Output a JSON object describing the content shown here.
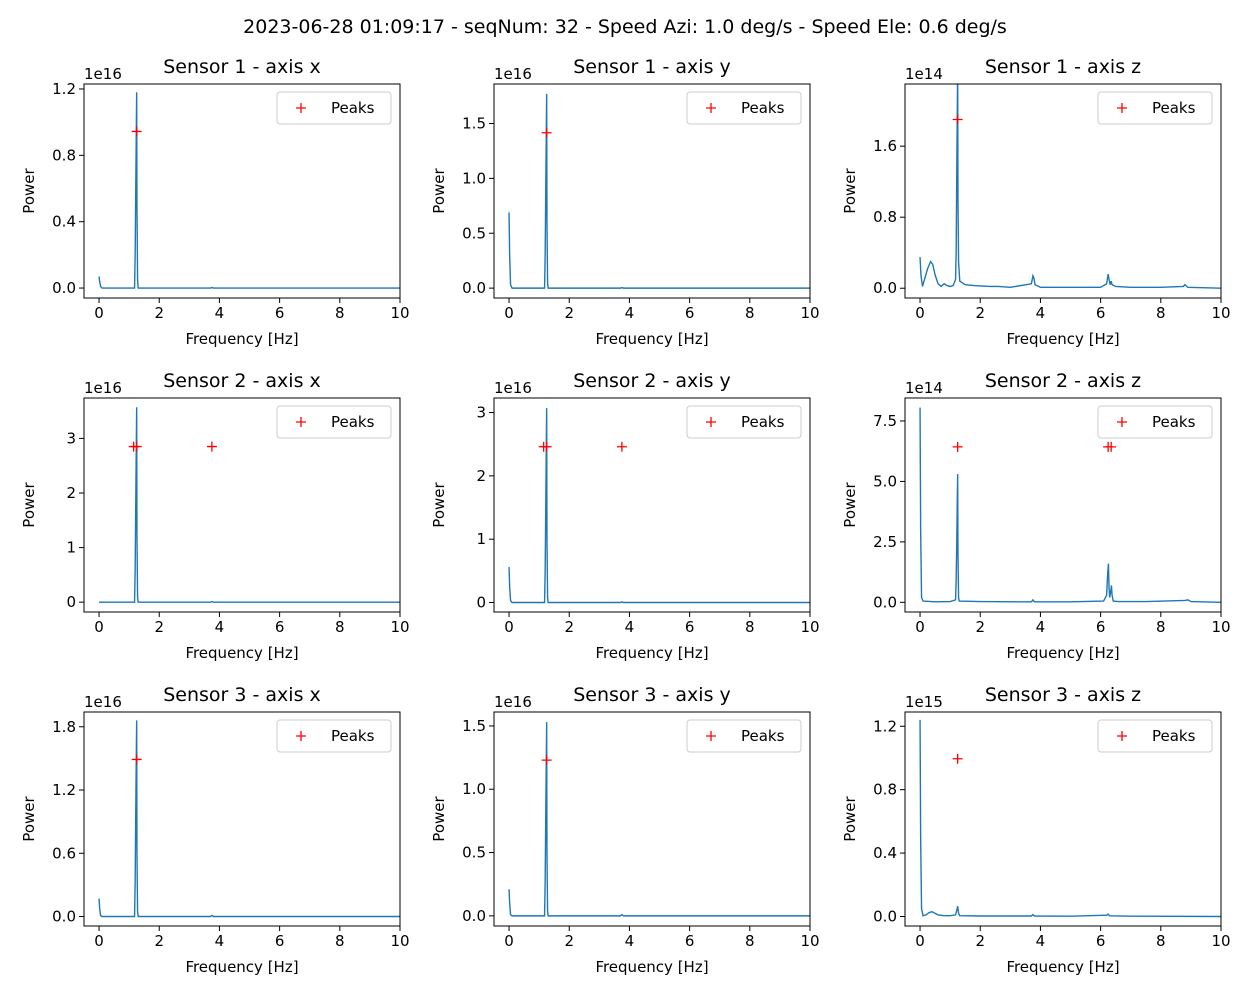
{
  "figure_title": "2023-06-28 01:09:17 - seqNum: 32 - Speed Azi: 1.0 deg/s - Speed Ele: 0.6 deg/s",
  "colors": {
    "line": "#1f77b4",
    "peaks": "#ff0000",
    "axes": "#000000"
  },
  "chart_data": [
    {
      "type": "line",
      "title": "Sensor 1 - axis x",
      "xlabel": "Frequency [Hz]",
      "ylabel": "Power",
      "xlim": [
        -0.5,
        10
      ],
      "ylim": [
        -0.06,
        1.23
      ],
      "exponent_label": "1e16",
      "xticks": [
        "0",
        "2",
        "4",
        "6",
        "8",
        "10"
      ],
      "xtick_values": [
        0,
        2,
        4,
        6,
        8,
        10
      ],
      "yticks": [
        "0.0",
        "0.4",
        "0.8",
        "1.2"
      ],
      "ytick_values": [
        0,
        0.4,
        0.8,
        1.2
      ],
      "series": [
        {
          "name": "",
          "x": [
            0,
            0.02,
            0.05,
            0.1,
            1.0,
            1.18,
            1.2,
            1.22,
            1.24,
            1.25,
            1.26,
            1.28,
            1.3,
            3.7,
            3.75,
            3.8,
            10
          ],
          "y": [
            0.07,
            0.04,
            0.01,
            0.0,
            0.0,
            0.0,
            0.2,
            0.6,
            1.0,
            1.18,
            0.5,
            0.05,
            0.0,
            0.0,
            0.003,
            0.0,
            0.0
          ]
        },
        {
          "name": "Peaks",
          "x": [
            1.25
          ],
          "y": [
            0.944
          ]
        }
      ],
      "legend": "upper right"
    },
    {
      "type": "line",
      "title": "Sensor 1 - axis y",
      "xlabel": "Frequency [Hz]",
      "ylabel": "Power",
      "xlim": [
        -0.5,
        10
      ],
      "ylim": [
        -0.09,
        1.86
      ],
      "exponent_label": "1e16",
      "xticks": [
        "0",
        "2",
        "4",
        "6",
        "8",
        "10"
      ],
      "xtick_values": [
        0,
        2,
        4,
        6,
        8,
        10
      ],
      "yticks": [
        "0.0",
        "0.5",
        "1.0",
        "1.5"
      ],
      "ytick_values": [
        0,
        0.5,
        1.0,
        1.5
      ],
      "series": [
        {
          "name": "",
          "x": [
            0,
            0.02,
            0.05,
            0.1,
            1.0,
            1.18,
            1.2,
            1.22,
            1.24,
            1.25,
            1.26,
            1.28,
            1.3,
            3.7,
            3.75,
            3.8,
            10
          ],
          "y": [
            0.69,
            0.3,
            0.03,
            0.0,
            0.0,
            0.0,
            0.3,
            0.9,
            1.5,
            1.77,
            0.6,
            0.05,
            0.0,
            0.0,
            0.005,
            0.0,
            0.0
          ]
        },
        {
          "name": "Peaks",
          "x": [
            1.25
          ],
          "y": [
            1.416
          ]
        }
      ],
      "legend": "upper right"
    },
    {
      "type": "line",
      "title": "Sensor 1 - axis z",
      "xlabel": "Frequency [Hz]",
      "ylabel": "Power",
      "xlim": [
        -0.5,
        10
      ],
      "ylim": [
        -0.11,
        2.3
      ],
      "exponent_label": "1e14",
      "xticks": [
        "0",
        "2",
        "4",
        "6",
        "8",
        "10"
      ],
      "xtick_values": [
        0,
        2,
        4,
        6,
        8,
        10
      ],
      "yticks": [
        "0.0",
        "0.8",
        "1.6"
      ],
      "ytick_values": [
        0,
        0.8,
        1.6
      ],
      "series": [
        {
          "name": "",
          "x": [
            0,
            0.03,
            0.08,
            0.15,
            0.25,
            0.35,
            0.42,
            0.5,
            0.6,
            0.7,
            0.8,
            0.9,
            1.0,
            1.1,
            1.18,
            1.2,
            1.22,
            1.24,
            1.25,
            1.26,
            1.28,
            1.32,
            1.5,
            1.8,
            2.3,
            2.6,
            3.0,
            3.7,
            3.75,
            3.78,
            3.82,
            4.0,
            5.0,
            6.0,
            6.2,
            6.25,
            6.28,
            6.32,
            6.35,
            6.38,
            6.5,
            7.0,
            8.0,
            8.75,
            8.8,
            8.9,
            10
          ],
          "y": [
            0.35,
            0.15,
            0.02,
            0.1,
            0.22,
            0.3,
            0.27,
            0.15,
            0.05,
            0.02,
            0.05,
            0.03,
            0.02,
            0.03,
            0.1,
            0.4,
            1.3,
            2.1,
            2.5,
            1.0,
            0.3,
            0.08,
            0.04,
            0.03,
            0.02,
            0.02,
            0.01,
            0.05,
            0.14,
            0.12,
            0.04,
            0.01,
            0.01,
            0.01,
            0.05,
            0.16,
            0.1,
            0.04,
            0.08,
            0.04,
            0.02,
            0.01,
            0.01,
            0.02,
            0.04,
            0.01,
            0.0
          ]
        },
        {
          "name": "Peaks",
          "x": [
            1.25
          ],
          "y": [
            1.9
          ]
        }
      ],
      "legend": "upper right"
    },
    {
      "type": "line",
      "title": "Sensor 2 - axis x",
      "xlabel": "Frequency [Hz]",
      "ylabel": "Power",
      "xlim": [
        -0.5,
        10
      ],
      "ylim": [
        -0.18,
        3.74
      ],
      "exponent_label": "1e16",
      "xticks": [
        "0",
        "2",
        "4",
        "6",
        "8",
        "10"
      ],
      "xtick_values": [
        0,
        2,
        4,
        6,
        8,
        10
      ],
      "yticks": [
        "0",
        "1",
        "2",
        "3"
      ],
      "ytick_values": [
        0,
        1,
        2,
        3
      ],
      "series": [
        {
          "name": "",
          "x": [
            0,
            0.05,
            1.0,
            1.18,
            1.2,
            1.22,
            1.24,
            1.25,
            1.26,
            1.28,
            1.3,
            3.7,
            3.75,
            3.8,
            10
          ],
          "y": [
            0.0,
            0.0,
            0.0,
            0.0,
            0.6,
            1.8,
            3.0,
            3.57,
            1.2,
            0.1,
            0.0,
            0.0,
            0.01,
            0.0,
            0.0
          ]
        },
        {
          "name": "Peaks",
          "x": [
            1.15,
            1.25,
            3.75
          ],
          "y": [
            2.85,
            2.85,
            2.85
          ]
        }
      ],
      "legend": "upper right"
    },
    {
      "type": "line",
      "title": "Sensor 2 - axis y",
      "xlabel": "Frequency [Hz]",
      "ylabel": "Power",
      "xlim": [
        -0.5,
        10
      ],
      "ylim": [
        -0.15,
        3.23
      ],
      "exponent_label": "1e16",
      "xticks": [
        "0",
        "2",
        "4",
        "6",
        "8",
        "10"
      ],
      "xtick_values": [
        0,
        2,
        4,
        6,
        8,
        10
      ],
      "yticks": [
        "0",
        "1",
        "2",
        "3"
      ],
      "ytick_values": [
        0,
        1,
        2,
        3
      ],
      "series": [
        {
          "name": "",
          "x": [
            0,
            0.02,
            0.05,
            0.1,
            1.0,
            1.18,
            1.2,
            1.22,
            1.24,
            1.25,
            1.26,
            1.28,
            1.3,
            3.7,
            3.75,
            3.8,
            10
          ],
          "y": [
            0.56,
            0.25,
            0.03,
            0.0,
            0.0,
            0.0,
            0.5,
            1.5,
            2.6,
            3.07,
            1.0,
            0.08,
            0.0,
            0.0,
            0.01,
            0.0,
            0.0
          ]
        },
        {
          "name": "Peaks",
          "x": [
            1.15,
            1.25,
            3.75
          ],
          "y": [
            2.46,
            2.46,
            2.46
          ]
        }
      ],
      "legend": "upper right"
    },
    {
      "type": "line",
      "title": "Sensor 2 - axis z",
      "xlabel": "Frequency [Hz]",
      "ylabel": "Power",
      "xlim": [
        -0.5,
        10
      ],
      "ylim": [
        -0.4,
        8.45
      ],
      "exponent_label": "1e14",
      "xticks": [
        "0",
        "2",
        "4",
        "6",
        "8",
        "10"
      ],
      "xtick_values": [
        0,
        2,
        4,
        6,
        8,
        10
      ],
      "yticks": [
        "0.0",
        "2.5",
        "5.0",
        "7.5"
      ],
      "ytick_values": [
        0,
        2.5,
        5.0,
        7.5
      ],
      "series": [
        {
          "name": "",
          "x": [
            0,
            0.02,
            0.05,
            0.1,
            0.5,
            1.0,
            1.18,
            1.2,
            1.22,
            1.24,
            1.25,
            1.26,
            1.28,
            1.3,
            2.0,
            3.7,
            3.75,
            3.8,
            5.0,
            6.1,
            6.2,
            6.23,
            6.26,
            6.28,
            6.3,
            6.33,
            6.36,
            6.38,
            6.42,
            6.6,
            7.5,
            8.8,
            8.9,
            9.0,
            10
          ],
          "y": [
            8.05,
            3.0,
            0.2,
            0.05,
            0.02,
            0.03,
            0.1,
            0.9,
            2.5,
            4.5,
            5.3,
            2.0,
            0.2,
            0.05,
            0.03,
            0.02,
            0.1,
            0.02,
            0.02,
            0.05,
            0.3,
            1.1,
            1.6,
            0.6,
            0.2,
            0.4,
            0.7,
            0.3,
            0.05,
            0.03,
            0.03,
            0.08,
            0.1,
            0.03,
            0.0
          ]
        },
        {
          "name": "Peaks",
          "x": [
            1.25,
            6.25,
            6.35
          ],
          "y": [
            6.43,
            6.43,
            6.43
          ]
        }
      ],
      "legend": "upper right"
    },
    {
      "type": "line",
      "title": "Sensor 3 - axis x",
      "xlabel": "Frequency [Hz]",
      "ylabel": "Power",
      "xlim": [
        -0.5,
        10
      ],
      "ylim": [
        -0.09,
        1.94
      ],
      "exponent_label": "1e16",
      "xticks": [
        "0",
        "2",
        "4",
        "6",
        "8",
        "10"
      ],
      "xtick_values": [
        0,
        2,
        4,
        6,
        8,
        10
      ],
      "yticks": [
        "0.0",
        "0.6",
        "1.2",
        "1.8"
      ],
      "ytick_values": [
        0,
        0.6,
        1.2,
        1.8
      ],
      "series": [
        {
          "name": "",
          "x": [
            0,
            0.02,
            0.05,
            0.1,
            1.0,
            1.18,
            1.2,
            1.22,
            1.24,
            1.25,
            1.26,
            1.28,
            1.3,
            3.7,
            3.75,
            3.8,
            10
          ],
          "y": [
            0.17,
            0.08,
            0.01,
            0.0,
            0.0,
            0.0,
            0.33,
            1.0,
            1.6,
            1.86,
            0.6,
            0.05,
            0.0,
            0.0,
            0.01,
            0.0,
            0.0
          ]
        },
        {
          "name": "Peaks",
          "x": [
            1.25
          ],
          "y": [
            1.49
          ]
        }
      ],
      "legend": "upper right"
    },
    {
      "type": "line",
      "title": "Sensor 3 - axis y",
      "xlabel": "Frequency [Hz]",
      "ylabel": "Power",
      "xlim": [
        -0.5,
        10
      ],
      "ylim": [
        -0.08,
        1.61
      ],
      "exponent_label": "1e16",
      "xticks": [
        "0",
        "2",
        "4",
        "6",
        "8",
        "10"
      ],
      "xtick_values": [
        0,
        2,
        4,
        6,
        8,
        10
      ],
      "yticks": [
        "0.0",
        "0.5",
        "1.0",
        "1.5"
      ],
      "ytick_values": [
        0,
        0.5,
        1.0,
        1.5
      ],
      "series": [
        {
          "name": "",
          "x": [
            0,
            0.02,
            0.05,
            0.1,
            1.0,
            1.18,
            1.2,
            1.22,
            1.24,
            1.25,
            1.26,
            1.28,
            1.3,
            3.7,
            3.75,
            3.8,
            10
          ],
          "y": [
            0.21,
            0.1,
            0.01,
            0.0,
            0.0,
            0.0,
            0.27,
            0.8,
            1.3,
            1.53,
            0.5,
            0.04,
            0.0,
            0.0,
            0.01,
            0.0,
            0.0
          ]
        },
        {
          "name": "Peaks",
          "x": [
            1.25
          ],
          "y": [
            1.23
          ]
        }
      ],
      "legend": "upper right"
    },
    {
      "type": "line",
      "title": "Sensor 3 - axis z",
      "xlabel": "Frequency [Hz]",
      "ylabel": "Power",
      "xlim": [
        -0.5,
        10
      ],
      "ylim": [
        -0.06,
        1.29
      ],
      "exponent_label": "1e15",
      "xticks": [
        "0",
        "2",
        "4",
        "6",
        "8",
        "10"
      ],
      "xtick_values": [
        0,
        2,
        4,
        6,
        8,
        10
      ],
      "yticks": [
        "0.0",
        "0.4",
        "0.8",
        "1.2"
      ],
      "ytick_values": [
        0,
        0.4,
        0.8,
        1.2
      ],
      "series": [
        {
          "name": "",
          "x": [
            0,
            0.02,
            0.05,
            0.1,
            0.2,
            0.3,
            0.4,
            0.5,
            0.6,
            0.8,
            1.0,
            1.18,
            1.22,
            1.25,
            1.28,
            1.32,
            2.0,
            3.7,
            3.75,
            3.8,
            5.0,
            6.2,
            6.25,
            6.3,
            7.0,
            10
          ],
          "y": [
            1.24,
            0.5,
            0.05,
            0.005,
            0.01,
            0.025,
            0.03,
            0.02,
            0.01,
            0.005,
            0.005,
            0.01,
            0.04,
            0.065,
            0.02,
            0.005,
            0.003,
            0.003,
            0.012,
            0.003,
            0.002,
            0.008,
            0.015,
            0.004,
            0.002,
            0.0
          ]
        },
        {
          "name": "Peaks",
          "x": [
            1.25
          ],
          "y": [
            0.995
          ]
        }
      ],
      "legend": "upper right"
    }
  ]
}
